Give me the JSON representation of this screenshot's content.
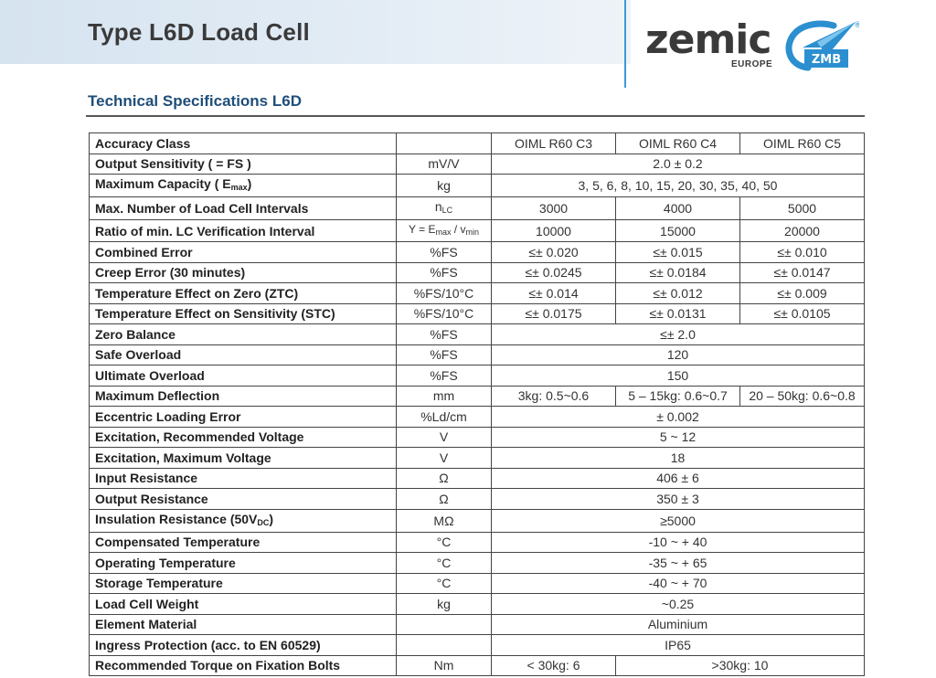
{
  "header": {
    "title": "Type L6D Load Cell",
    "logo": {
      "wordmark": "zemic",
      "sub": "EUROPE",
      "mark_text": "ZMB",
      "registered": "®"
    }
  },
  "section_title": "Technical Specifications L6D",
  "table": {
    "classes": [
      "OIML R60 C3",
      "OIML R60 C4",
      "OIML R60 C5"
    ],
    "rows": [
      {
        "param": "Accuracy Class",
        "unit": ""
      },
      {
        "param": "Output Sensitivity ( = FS )",
        "unit": "mV/V",
        "value": "2.0 ± 0.2"
      },
      {
        "param": "Maximum Capacity ( E",
        "param_sub": "max",
        "param_tail": ")",
        "unit": "kg",
        "value": "3, 5, 6, 8, 10, 15, 20, 30, 35, 40, 50"
      },
      {
        "param": "Max. Number of Load Cell Intervals",
        "unit": "n",
        "unit_sub": "LC",
        "values": [
          "3000",
          "4000",
          "5000"
        ]
      },
      {
        "param": "Ratio of min. LC Verification Interval",
        "unit": "Y = E",
        "unit_sub": "max",
        "unit_mid": " / v",
        "unit_sub2": "min",
        "values": [
          "10000",
          "15000",
          "20000"
        ]
      },
      {
        "param": "Combined Error",
        "unit": "%FS",
        "values": [
          "≤± 0.020",
          "≤± 0.015",
          "≤± 0.010"
        ]
      },
      {
        "param": "Creep Error (30 minutes)",
        "unit": "%FS",
        "values": [
          "≤± 0.0245",
          "≤± 0.0184",
          "≤± 0.0147"
        ]
      },
      {
        "param": "Temperature Effect on Zero (ZTC)",
        "unit": "%FS/10°C",
        "values": [
          "≤± 0.014",
          "≤± 0.012",
          "≤± 0.009"
        ]
      },
      {
        "param": "Temperature Effect on Sensitivity (STC)",
        "unit": "%FS/10°C",
        "values": [
          "≤± 0.0175",
          "≤± 0.0131",
          "≤± 0.0105"
        ]
      },
      {
        "param": "Zero Balance",
        "unit": "%FS",
        "value": "≤± 2.0"
      },
      {
        "param": "Safe Overload",
        "unit": "%FS",
        "value": "120"
      },
      {
        "param": "Ultimate Overload",
        "unit": "%FS",
        "value": "150"
      },
      {
        "param": "Maximum Deflection",
        "unit": "mm",
        "values": [
          "3kg: 0.5~0.6",
          "5 – 15kg: 0.6~0.7",
          "20 – 50kg: 0.6~0.8"
        ]
      },
      {
        "param": "Eccentric Loading Error",
        "unit": "%Ld/cm",
        "value": "± 0.002"
      },
      {
        "param": "Excitation, Recommended Voltage",
        "unit": "V",
        "value": "5 ~ 12"
      },
      {
        "param": "Excitation, Maximum Voltage",
        "unit": "V",
        "value": "18"
      },
      {
        "param": "Input Resistance",
        "unit": "Ω",
        "value": "406 ± 6"
      },
      {
        "param": "Output Resistance",
        "unit": "Ω",
        "value": "350 ± 3"
      },
      {
        "param": "Insulation Resistance (50V",
        "param_sub": "DC",
        "param_tail": ")",
        "unit": "MΩ",
        "value": "≥5000"
      },
      {
        "param": "Compensated Temperature",
        "unit": "°C",
        "value": "-10 ~ + 40"
      },
      {
        "param": "Operating Temperature",
        "unit": "°C",
        "value": "-35 ~ + 65"
      },
      {
        "param": "Storage Temperature",
        "unit": "°C",
        "value": "-40 ~ + 70"
      },
      {
        "param": "Load Cell Weight",
        "unit": "kg",
        "value": "~0.25"
      },
      {
        "param": "Element Material",
        "unit": "",
        "value": "Aluminium"
      },
      {
        "param": "Ingress Protection (acc. to EN 60529)",
        "unit": "",
        "value": "IP65"
      },
      {
        "param": "Recommended Torque on Fixation Bolts",
        "unit": "Nm",
        "values_split": [
          "< 30kg: 6",
          ">30kg: 10"
        ]
      }
    ]
  },
  "colors": {
    "section_title": "#1f4e79",
    "logo_blue": "#2b8fd0",
    "header_band": "#dce7f2"
  }
}
